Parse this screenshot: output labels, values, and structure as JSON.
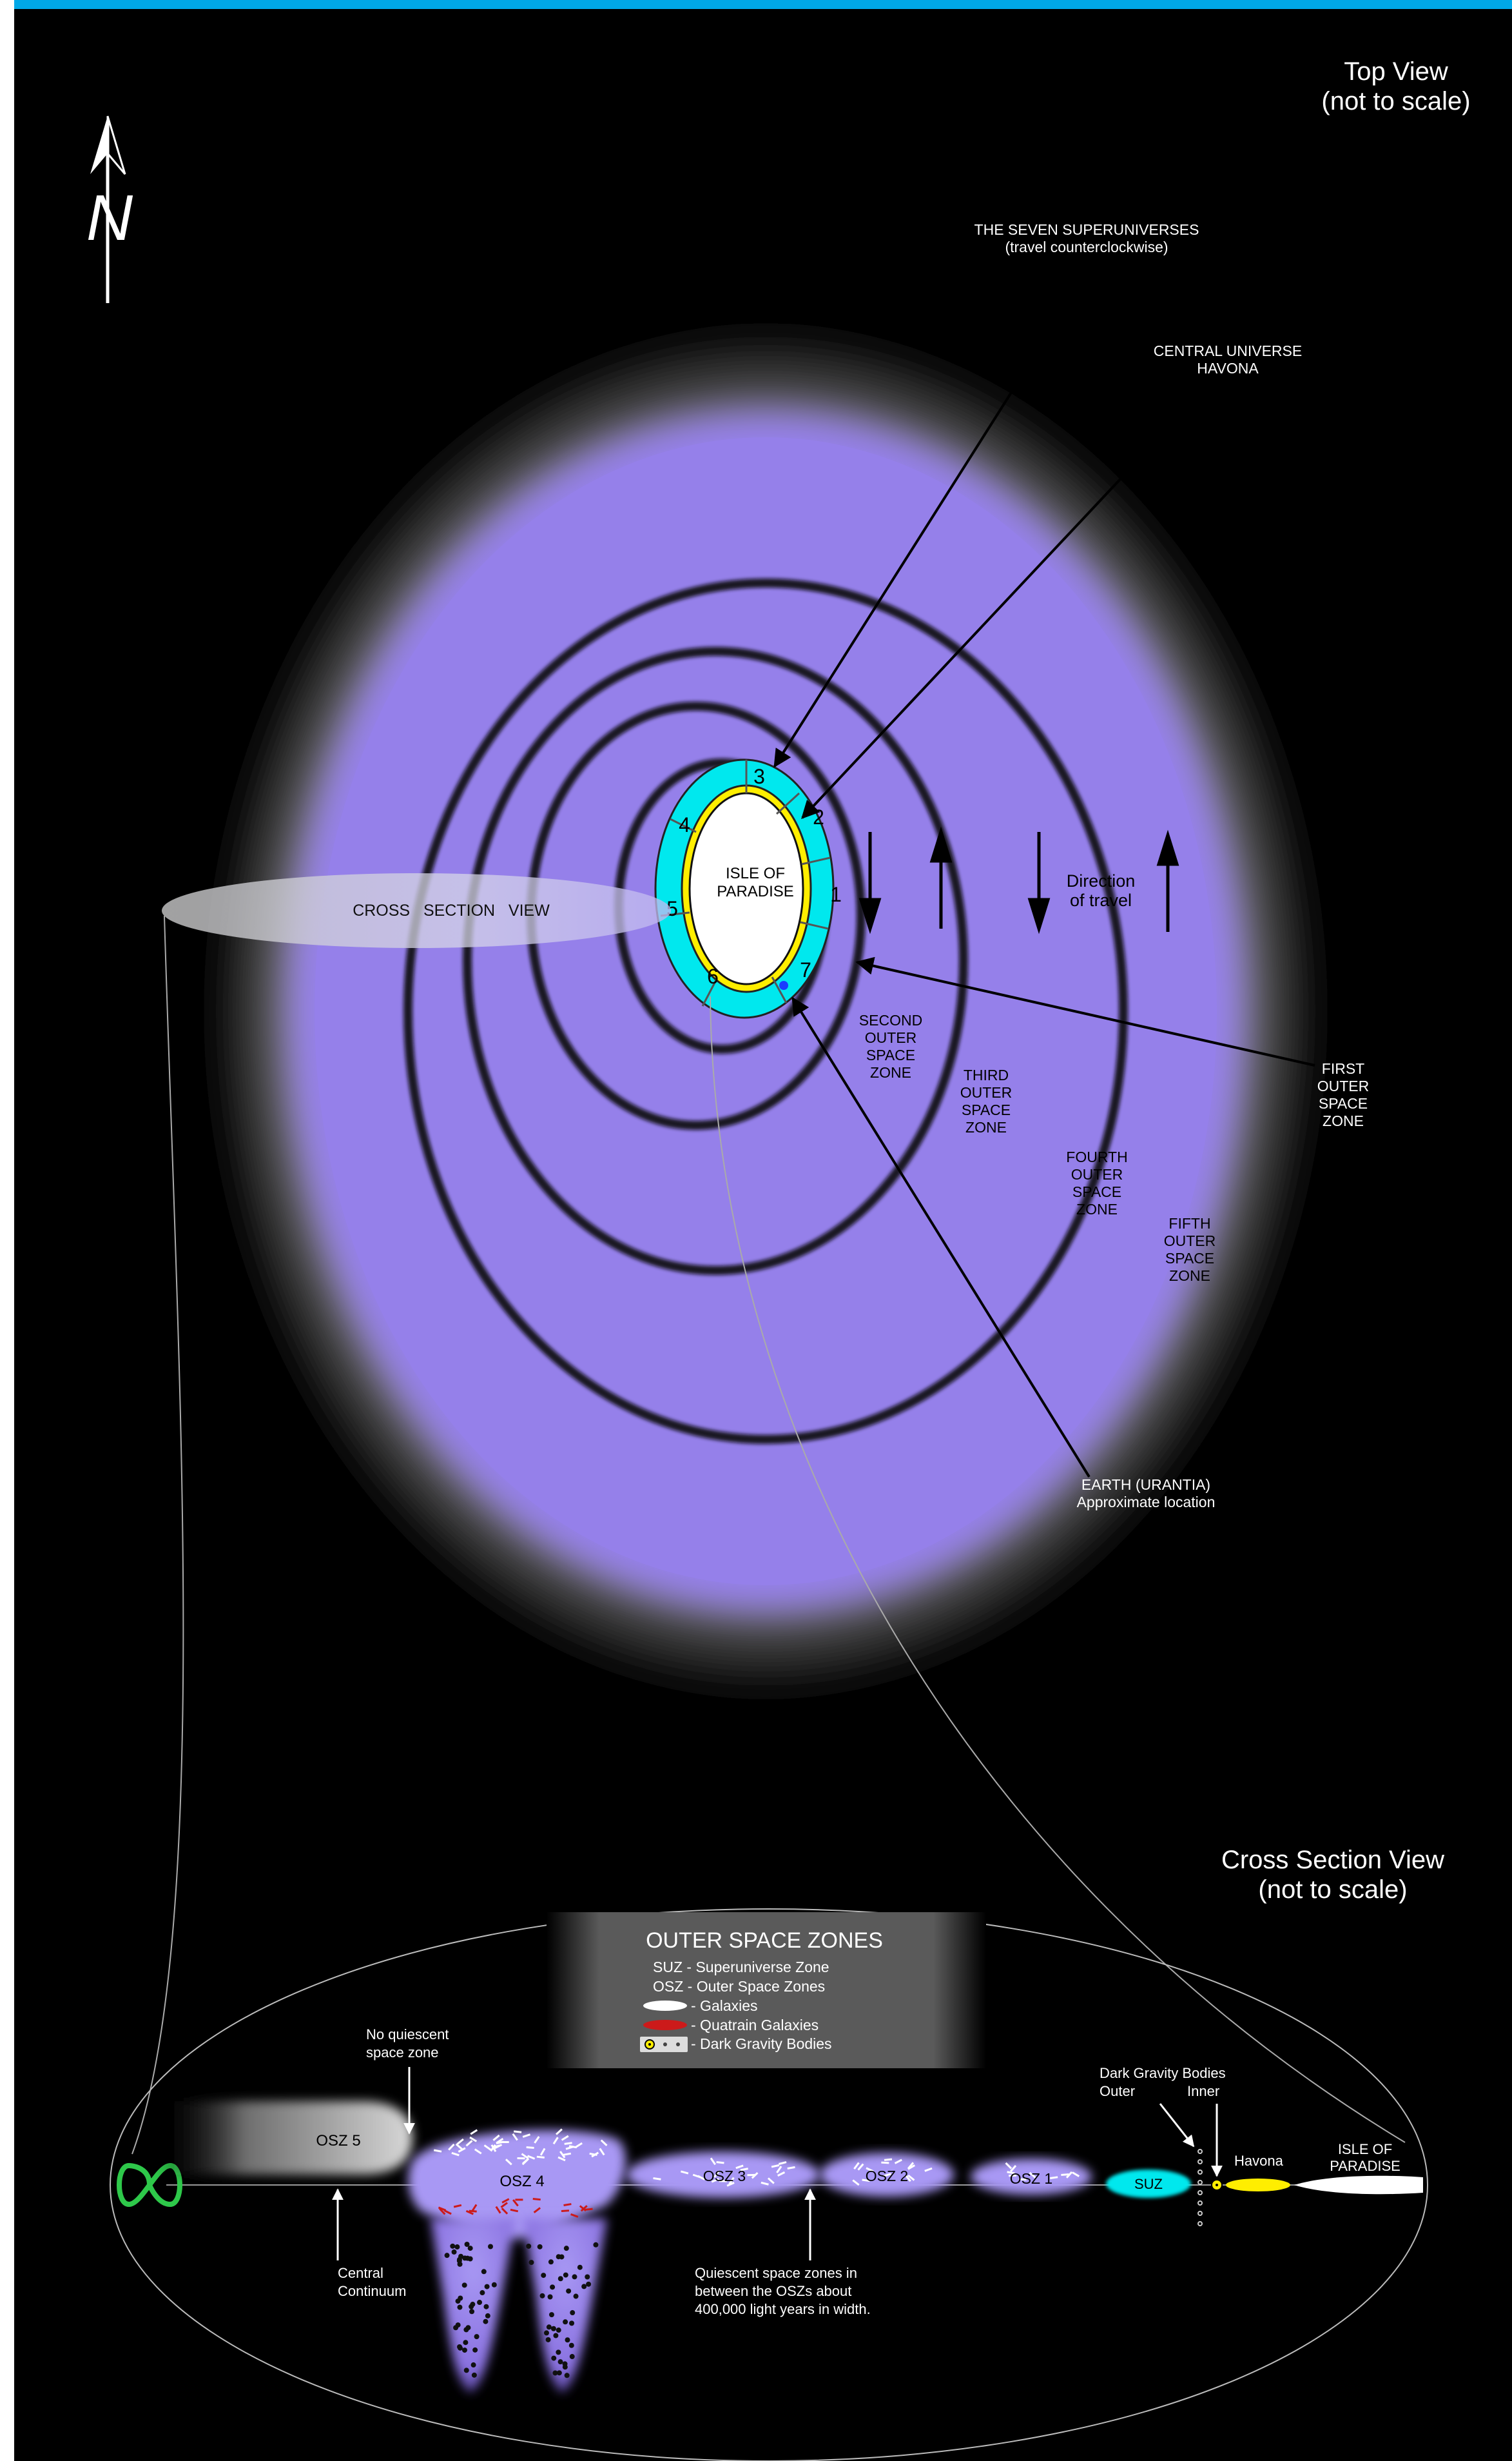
{
  "top_view": {
    "title": "Top View",
    "subtitle": "(not to scale)",
    "north": "N",
    "superuniverses_label": "THE SEVEN SUPERUNIVERSES",
    "superuniverses_sub": "(travel counterclockwise)",
    "central_universe": "CENTRAL UNIVERSE",
    "havona": "HAVONA",
    "isle_line1": "ISLE OF",
    "isle_line2": "PARADISE",
    "cross_section": "CROSS   SECTION   VIEW",
    "direction_line1": "Direction",
    "direction_line2": "of travel",
    "sectors": [
      "1",
      "2",
      "3",
      "4",
      "5",
      "6",
      "7"
    ],
    "first_zone": [
      "FIRST",
      "OUTER",
      "SPACE",
      "ZONE"
    ],
    "second_zone": [
      "SECOND",
      "OUTER",
      "SPACE",
      "ZONE"
    ],
    "third_zone": [
      "THIRD",
      "OUTER",
      "SPACE",
      "ZONE"
    ],
    "fourth_zone": [
      "FOURTH",
      "OUTER",
      "SPACE",
      "ZONE"
    ],
    "fifth_zone": [
      "FIFTH",
      "OUTER",
      "SPACE",
      "ZONE"
    ],
    "earth_line1": "EARTH (URANTIA)",
    "earth_line2": "Approximate location"
  },
  "cross_view": {
    "title": "Cross Section View",
    "subtitle": "(not to scale)",
    "legend_title": "OUTER SPACE ZONES",
    "legend_suz": "SUZ - Superuniverse Zone",
    "legend_osz": "OSZ - Outer Space Zones",
    "legend_galaxies": "- Galaxies",
    "legend_quatrain": "- Quatrain Galaxies",
    "legend_dark": "- Dark Gravity Bodies",
    "no_quiescent_1": "No quiescent",
    "no_quiescent_2": "space zone",
    "dark_bodies": "Dark Gravity Bodies",
    "outer": "Outer",
    "inner": "Inner",
    "havona": "Havona",
    "isle_line1": "ISLE OF",
    "isle_line2": "PARADISE",
    "osz5": "OSZ 5",
    "osz4": "OSZ 4",
    "osz3": "OSZ 3",
    "osz2": "OSZ 2",
    "osz1": "OSZ 1",
    "suz": "SUZ",
    "central_1": "Central",
    "central_2": "Continuum",
    "quiescent_1": "Quiescent space zones in",
    "quiescent_2": "between the OSZs about",
    "quiescent_3": "400,000 light years in width."
  },
  "colors": {
    "background": "#000000",
    "top_bar": "#00a8e8",
    "zone_purple": "#9580ea",
    "superuniverse_cyan": "#00e8ee",
    "havona_yellow": "#ffee00",
    "paradise_white": "#ffffff",
    "quatrain_red": "#cc1a1a",
    "continuum_green": "#2ec84a"
  }
}
